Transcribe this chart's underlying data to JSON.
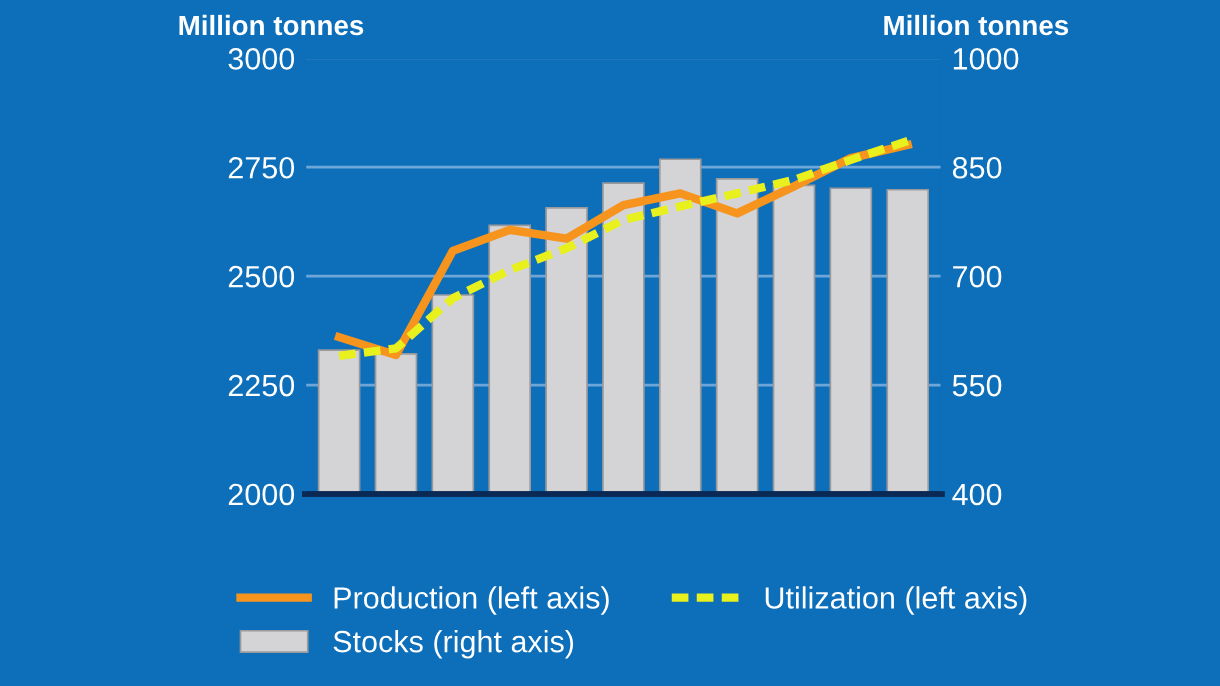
{
  "chart_data": {
    "type": "bar",
    "categories": [
      null,
      null,
      null,
      null,
      null,
      null,
      null,
      null,
      null,
      null,
      null
    ],
    "ylabel": "Million tonnes",
    "y2label": "Million tonnes",
    "ylim": [
      2000,
      3000
    ],
    "yticks": [
      2000,
      2250,
      2500,
      2750,
      3000
    ],
    "y2lim": [
      400,
      1000
    ],
    "y2ticks": [
      400,
      550,
      700,
      850,
      1000
    ],
    "grid": "y",
    "legend": "bottom",
    "series": [
      {
        "name": "Production (left axis)",
        "type": "line",
        "color": "#f7941d",
        "line_style": "solid",
        "values": [
          2360,
          2319,
          2558,
          2606,
          2586,
          2663,
          2690,
          2644,
          2706,
          2771,
          2801
        ]
      },
      {
        "name": "Utilization (left axis)",
        "type": "line",
        "color": "#e8f01e",
        "line_style": "dashed",
        "values": [
          2317,
          2334,
          2449,
          2514,
          2564,
          2629,
          2660,
          2690,
          2721,
          2767,
          2810
        ]
      },
      {
        "name": "Stocks (right axis)",
        "axis": "y2",
        "color": "#d4d4d6",
        "values": [
          598,
          593,
          674,
          770,
          794,
          828,
          861,
          834,
          825,
          821,
          819
        ]
      }
    ]
  }
}
